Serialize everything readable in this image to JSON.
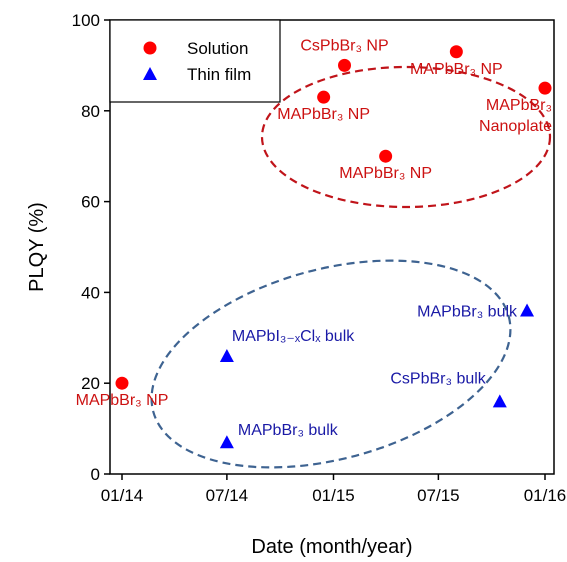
{
  "chart_data": {
    "type": "scatter",
    "title": "",
    "xlabel": "Date (month/year)",
    "ylabel": "PLQY (%)",
    "x_ticks": [
      {
        "date": "2014-01",
        "label": "01/14"
      },
      {
        "date": "2014-07",
        "label": "07/14"
      },
      {
        "date": "2015-01",
        "label": "01/15"
      },
      {
        "date": "2015-07",
        "label": "07/15"
      },
      {
        "date": "2016-01",
        "label": "01/16"
      }
    ],
    "xlim": [
      "2014-01",
      "2016-01"
    ],
    "ylim": [
      0,
      100
    ],
    "y_ticks": [
      0,
      20,
      40,
      60,
      80,
      100
    ],
    "grid": false,
    "legend": {
      "position": "top-left"
    },
    "series": [
      {
        "name": "Solution",
        "marker": "circle",
        "color": "#ff0000",
        "label_color": "#cc1111",
        "points": [
          {
            "x": "2014-01-01",
            "y": 20,
            "label": "MAPbBr₃ NP",
            "label_pos": "below"
          },
          {
            "x": "2014-12-15",
            "y": 83,
            "label": "MAPbBr₃ NP",
            "label_pos": "below"
          },
          {
            "x": "2015-01-20",
            "y": 90,
            "label": "CsPbBr₃ NP",
            "label_pos": "above"
          },
          {
            "x": "2015-04-01",
            "y": 70,
            "label": "MAPbBr₃ NP",
            "label_pos": "below"
          },
          {
            "x": "2015-08-01",
            "y": 93,
            "label": "MAPbBr₃ NP",
            "label_pos": "below"
          },
          {
            "x": "2016-01-01",
            "y": 85,
            "label": [
              "MAPbBr₃",
              "Nanoplate"
            ],
            "label_pos": "left-below"
          }
        ]
      },
      {
        "name": "Thin film",
        "marker": "triangle",
        "color": "#0000ff",
        "label_color": "#1a1aa6",
        "points": [
          {
            "x": "2014-07-01",
            "y": 26,
            "label": "MAPbI₃₋ₓClₓ  bulk",
            "label_pos": "above-right"
          },
          {
            "x": "2014-07-01",
            "y": 7,
            "label": "MAPbBr₃ bulk",
            "label_pos": "right"
          },
          {
            "x": "2015-10-15",
            "y": 16,
            "label": "CsPbBr₃ bulk",
            "label_pos": "above-left"
          },
          {
            "x": "2015-12-01",
            "y": 36,
            "label": "MAPbBr₃ bulk",
            "label_pos": "left"
          }
        ]
      }
    ],
    "groups": [
      {
        "series": "Solution",
        "style": "dashed-ellipse",
        "color": "#c0141a"
      },
      {
        "series": "Thin film",
        "style": "dashed-ellipse",
        "color": "#3e6391"
      }
    ]
  }
}
